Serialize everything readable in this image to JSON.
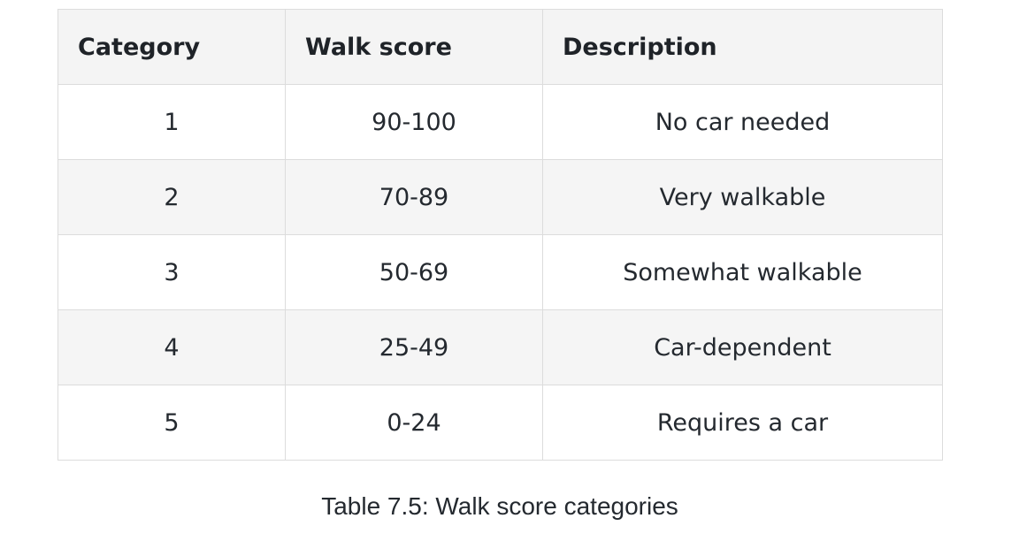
{
  "table": {
    "headers": [
      "Category",
      "Walk score",
      "Description"
    ],
    "rows": [
      [
        "1",
        "90-100",
        "No car needed"
      ],
      [
        "2",
        "70-89",
        "Very walkable"
      ],
      [
        "3",
        "50-69",
        "Somewhat walkable"
      ],
      [
        "4",
        "25-49",
        "Car-dependent"
      ],
      [
        "5",
        "0-24",
        "Requires a car"
      ]
    ]
  },
  "caption": "Table 7.5: Walk score categories"
}
